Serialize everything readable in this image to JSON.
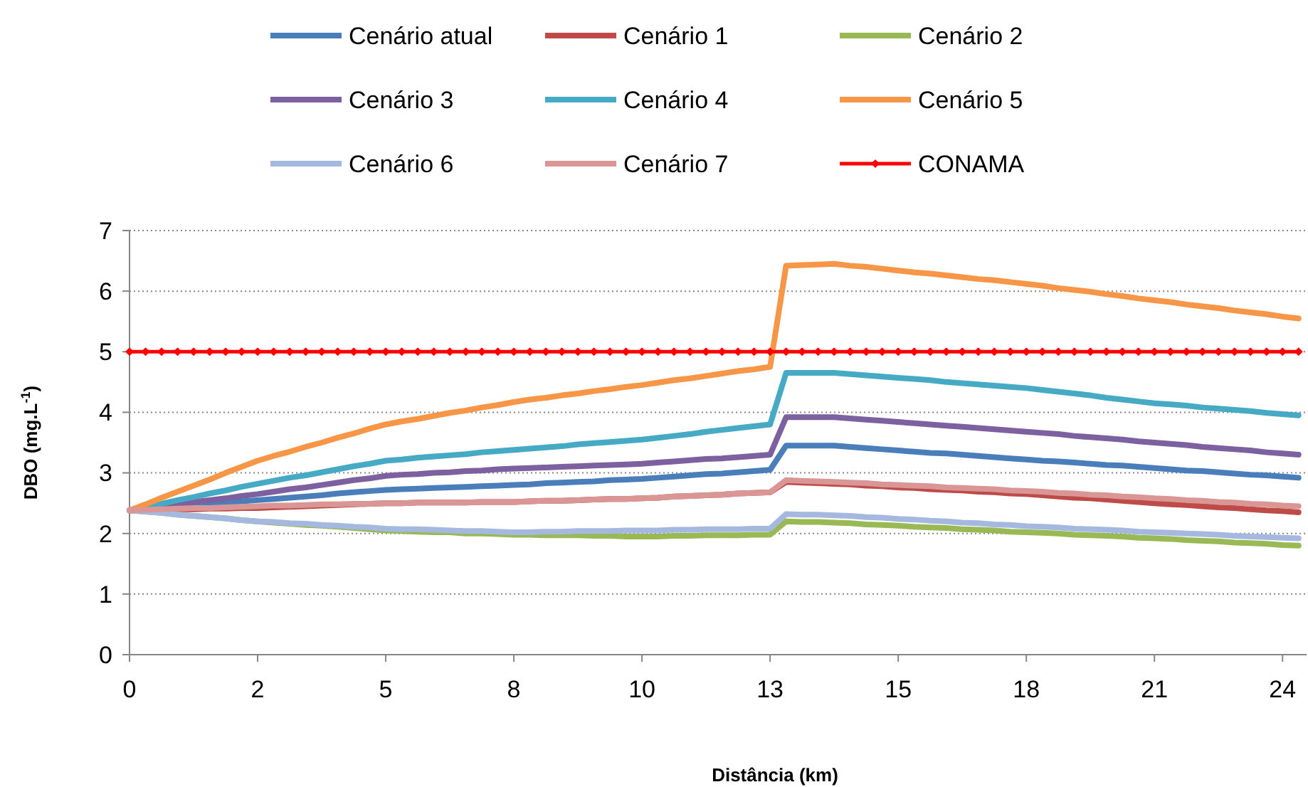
{
  "chart_data": {
    "type": "line",
    "xlabel": "Distância (km)",
    "ylabel": "DBO (mg.L$^{-1}$)",
    "ylim": [
      0,
      7
    ],
    "categories": [
      "0",
      null,
      null,
      null,
      null,
      null,
      null,
      null,
      "2",
      null,
      null,
      null,
      null,
      null,
      null,
      null,
      "5",
      null,
      null,
      null,
      null,
      null,
      null,
      null,
      "8",
      null,
      null,
      null,
      null,
      null,
      null,
      null,
      "10",
      null,
      null,
      null,
      null,
      null,
      null,
      null,
      "13",
      null,
      null,
      null,
      null,
      null,
      null,
      null,
      "15",
      null,
      null,
      null,
      null,
      null,
      null,
      null,
      "18",
      null,
      null,
      null,
      null,
      null,
      null,
      null,
      "21",
      null,
      null,
      null,
      null,
      null,
      null,
      null,
      "24",
      null
    ],
    "yticks": [
      0,
      1,
      2,
      3,
      4,
      5,
      6,
      7
    ],
    "grid": "y",
    "legend": "top",
    "marker": "none",
    "line_style": "solid",
    "series": [
      {
        "name": "Cenário atual",
        "color": "#4a7ebb",
        "values": [
          2.38,
          2.4,
          2.42,
          2.44,
          2.46,
          2.49,
          2.51,
          2.53,
          2.55,
          2.57,
          2.59,
          2.61,
          2.63,
          2.66,
          2.68,
          2.7,
          2.72,
          2.73,
          2.74,
          2.75,
          2.76,
          2.77,
          2.78,
          2.79,
          2.8,
          2.81,
          2.83,
          2.84,
          2.85,
          2.86,
          2.88,
          2.89,
          2.9,
          2.92,
          2.94,
          2.96,
          2.98,
          2.99,
          3.01,
          3.03,
          3.05,
          3.45,
          3.45,
          3.45,
          3.45,
          3.43,
          3.41,
          3.39,
          3.37,
          3.35,
          3.33,
          3.32,
          3.3,
          3.28,
          3.26,
          3.24,
          3.22,
          3.2,
          3.19,
          3.17,
          3.15,
          3.13,
          3.12,
          3.1,
          3.08,
          3.06,
          3.04,
          3.03,
          3.01,
          2.99,
          2.97,
          2.96,
          2.94,
          2.92
        ]
      },
      {
        "name": "Cenário 1",
        "color": "#be4b48",
        "values": [
          2.38,
          2.39,
          2.39,
          2.4,
          2.4,
          2.41,
          2.41,
          2.42,
          2.42,
          2.43,
          2.44,
          2.45,
          2.46,
          2.47,
          2.48,
          2.49,
          2.5,
          2.5,
          2.51,
          2.51,
          2.51,
          2.51,
          2.52,
          2.52,
          2.52,
          2.53,
          2.54,
          2.54,
          2.55,
          2.56,
          2.57,
          2.57,
          2.58,
          2.59,
          2.61,
          2.62,
          2.63,
          2.64,
          2.66,
          2.67,
          2.68,
          2.85,
          2.84,
          2.83,
          2.82,
          2.81,
          2.79,
          2.78,
          2.76,
          2.75,
          2.73,
          2.72,
          2.71,
          2.69,
          2.68,
          2.66,
          2.65,
          2.63,
          2.61,
          2.59,
          2.58,
          2.56,
          2.54,
          2.52,
          2.5,
          2.48,
          2.47,
          2.45,
          2.43,
          2.42,
          2.4,
          2.38,
          2.37,
          2.35
        ]
      },
      {
        "name": "Cenário 2",
        "color": "#98b954",
        "values": [
          2.38,
          2.36,
          2.34,
          2.31,
          2.29,
          2.27,
          2.25,
          2.22,
          2.2,
          2.18,
          2.16,
          2.14,
          2.13,
          2.11,
          2.09,
          2.07,
          2.05,
          2.04,
          2.03,
          2.02,
          2.02,
          2.0,
          2.0,
          1.99,
          1.98,
          1.98,
          1.97,
          1.97,
          1.97,
          1.96,
          1.96,
          1.95,
          1.95,
          1.95,
          1.96,
          1.96,
          1.97,
          1.97,
          1.97,
          1.98,
          1.98,
          2.2,
          2.19,
          2.19,
          2.18,
          2.17,
          2.15,
          2.14,
          2.13,
          2.11,
          2.1,
          2.09,
          2.07,
          2.06,
          2.05,
          2.03,
          2.02,
          2.01,
          2.0,
          1.98,
          1.97,
          1.96,
          1.95,
          1.93,
          1.92,
          1.91,
          1.89,
          1.88,
          1.87,
          1.85,
          1.84,
          1.83,
          1.81,
          1.8
        ]
      },
      {
        "name": "Cenário 3",
        "color": "#7d60a0",
        "values": [
          2.38,
          2.41,
          2.45,
          2.48,
          2.52,
          2.55,
          2.58,
          2.62,
          2.65,
          2.69,
          2.73,
          2.76,
          2.8,
          2.84,
          2.88,
          2.91,
          2.95,
          2.97,
          2.98,
          3.0,
          3.01,
          3.03,
          3.04,
          3.06,
          3.07,
          3.08,
          3.09,
          3.1,
          3.11,
          3.12,
          3.13,
          3.14,
          3.15,
          3.17,
          3.19,
          3.21,
          3.23,
          3.24,
          3.26,
          3.28,
          3.3,
          3.92,
          3.92,
          3.92,
          3.92,
          3.9,
          3.88,
          3.86,
          3.84,
          3.82,
          3.8,
          3.78,
          3.76,
          3.74,
          3.72,
          3.7,
          3.68,
          3.66,
          3.64,
          3.61,
          3.59,
          3.57,
          3.55,
          3.52,
          3.5,
          3.48,
          3.46,
          3.43,
          3.41,
          3.39,
          3.37,
          3.34,
          3.32,
          3.3
        ]
      },
      {
        "name": "Cenário 4",
        "color": "#46aac5",
        "values": [
          2.38,
          2.44,
          2.49,
          2.55,
          2.6,
          2.66,
          2.71,
          2.77,
          2.82,
          2.87,
          2.92,
          2.96,
          3.01,
          3.06,
          3.11,
          3.15,
          3.2,
          3.22,
          3.25,
          3.27,
          3.29,
          3.31,
          3.34,
          3.36,
          3.38,
          3.4,
          3.42,
          3.44,
          3.47,
          3.49,
          3.51,
          3.53,
          3.55,
          3.58,
          3.61,
          3.64,
          3.68,
          3.71,
          3.74,
          3.77,
          3.8,
          4.65,
          4.65,
          4.65,
          4.65,
          4.63,
          4.61,
          4.59,
          4.57,
          4.55,
          4.53,
          4.5,
          4.48,
          4.46,
          4.44,
          4.42,
          4.4,
          4.37,
          4.34,
          4.31,
          4.28,
          4.24,
          4.21,
          4.18,
          4.15,
          4.13,
          4.11,
          4.08,
          4.06,
          4.04,
          4.02,
          3.99,
          3.97,
          3.95
        ]
      },
      {
        "name": "Cenário 5",
        "color": "#f79646",
        "values": [
          2.38,
          2.48,
          2.59,
          2.69,
          2.79,
          2.89,
          3.0,
          3.1,
          3.2,
          3.28,
          3.35,
          3.43,
          3.5,
          3.58,
          3.65,
          3.73,
          3.8,
          3.85,
          3.89,
          3.94,
          3.99,
          4.03,
          4.08,
          4.12,
          4.17,
          4.21,
          4.24,
          4.28,
          4.31,
          4.35,
          4.38,
          4.42,
          4.45,
          4.49,
          4.53,
          4.56,
          4.6,
          4.64,
          4.68,
          4.71,
          4.75,
          6.42,
          6.43,
          6.44,
          6.45,
          6.42,
          6.4,
          6.37,
          6.34,
          6.31,
          6.29,
          6.26,
          6.23,
          6.2,
          6.18,
          6.15,
          6.12,
          6.09,
          6.05,
          6.02,
          5.99,
          5.95,
          5.92,
          5.88,
          5.85,
          5.82,
          5.78,
          5.75,
          5.72,
          5.68,
          5.65,
          5.62,
          5.58,
          5.55
        ]
      },
      {
        "name": "Cenário 6",
        "color": "#a5b9e0",
        "values": [
          2.38,
          2.36,
          2.34,
          2.31,
          2.29,
          2.27,
          2.25,
          2.22,
          2.2,
          2.19,
          2.17,
          2.16,
          2.14,
          2.13,
          2.11,
          2.1,
          2.08,
          2.07,
          2.07,
          2.06,
          2.05,
          2.04,
          2.04,
          2.03,
          2.02,
          2.02,
          2.03,
          2.03,
          2.04,
          2.04,
          2.04,
          2.05,
          2.05,
          2.05,
          2.06,
          2.06,
          2.07,
          2.07,
          2.07,
          2.08,
          2.08,
          2.32,
          2.31,
          2.31,
          2.3,
          2.29,
          2.27,
          2.26,
          2.24,
          2.23,
          2.21,
          2.2,
          2.18,
          2.17,
          2.15,
          2.14,
          2.12,
          2.11,
          2.1,
          2.08,
          2.07,
          2.06,
          2.05,
          2.03,
          2.02,
          2.01,
          2.0,
          1.99,
          1.98,
          1.96,
          1.95,
          1.94,
          1.93,
          1.92
        ]
      },
      {
        "name": "Cenário 7",
        "color": "#d99694",
        "values": [
          2.38,
          2.39,
          2.4,
          2.41,
          2.42,
          2.42,
          2.43,
          2.44,
          2.45,
          2.46,
          2.46,
          2.47,
          2.48,
          2.48,
          2.49,
          2.49,
          2.5,
          2.5,
          2.51,
          2.51,
          2.51,
          2.51,
          2.52,
          2.52,
          2.52,
          2.53,
          2.54,
          2.54,
          2.55,
          2.56,
          2.57,
          2.57,
          2.58,
          2.59,
          2.61,
          2.62,
          2.63,
          2.64,
          2.66,
          2.67,
          2.68,
          2.88,
          2.87,
          2.86,
          2.85,
          2.84,
          2.83,
          2.81,
          2.8,
          2.79,
          2.78,
          2.76,
          2.75,
          2.74,
          2.73,
          2.71,
          2.7,
          2.69,
          2.67,
          2.66,
          2.64,
          2.63,
          2.61,
          2.6,
          2.58,
          2.57,
          2.55,
          2.54,
          2.52,
          2.51,
          2.49,
          2.48,
          2.46,
          2.45
        ]
      },
      {
        "name": "CONAMA",
        "color": "#ff0000",
        "marker": "diamond",
        "values": [
          5,
          5,
          5,
          5,
          5,
          5,
          5,
          5,
          5,
          5,
          5,
          5,
          5,
          5,
          5,
          5,
          5,
          5,
          5,
          5,
          5,
          5,
          5,
          5,
          5,
          5,
          5,
          5,
          5,
          5,
          5,
          5,
          5,
          5,
          5,
          5,
          5,
          5,
          5,
          5,
          5,
          5,
          5,
          5,
          5,
          5,
          5,
          5,
          5,
          5,
          5,
          5,
          5,
          5,
          5,
          5,
          5,
          5,
          5,
          5,
          5,
          5,
          5,
          5,
          5,
          5,
          5,
          5,
          5,
          5,
          5,
          5,
          5,
          5
        ]
      }
    ]
  }
}
